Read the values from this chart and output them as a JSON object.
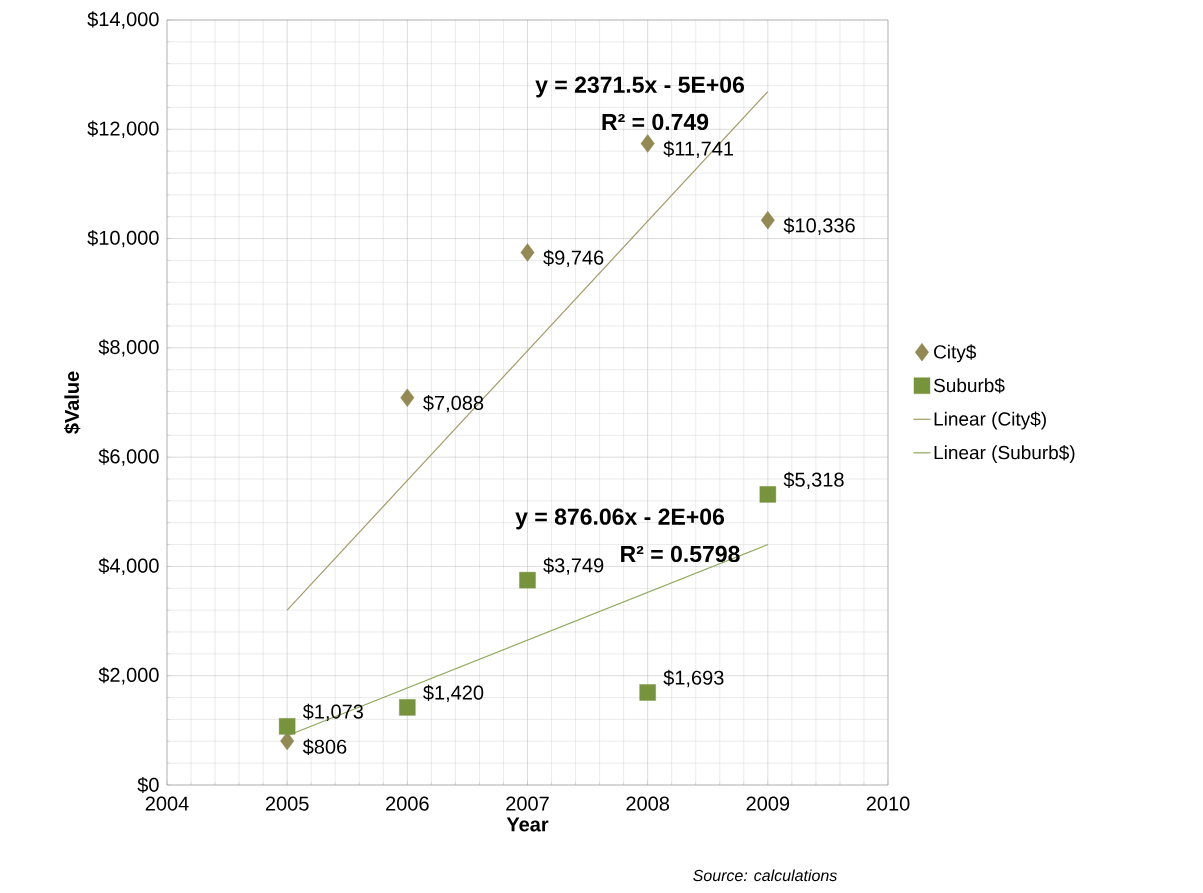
{
  "chart_data": {
    "type": "scatter",
    "xlabel": "Year",
    "ylabel": "$Value",
    "xlim": [
      2004,
      2010
    ],
    "xticks": [
      2004,
      2005,
      2006,
      2007,
      2008,
      2009,
      2010
    ],
    "ylim": [
      0,
      14000
    ],
    "yticks": [
      {
        "value": 0,
        "label": "$0"
      },
      {
        "value": 2000,
        "label": "$2,000"
      },
      {
        "value": 4000,
        "label": "$4,000"
      },
      {
        "value": 6000,
        "label": "$6,000"
      },
      {
        "value": 8000,
        "label": "$8,000"
      },
      {
        "value": 10000,
        "label": "$10,000"
      },
      {
        "value": 12000,
        "label": "$12,000"
      },
      {
        "value": 14000,
        "label": "$14,000"
      }
    ],
    "grid": true,
    "legend": "right",
    "series": [
      {
        "name": "City$",
        "marker": "diamond",
        "color": "#938953",
        "x": [
          2005,
          2006,
          2007,
          2008,
          2009
        ],
        "values": [
          806,
          7088,
          9746,
          11741,
          10336
        ],
        "value_labels": [
          "$806",
          "$7,088",
          "$9,746",
          "$11,741",
          "$10,336"
        ]
      },
      {
        "name": "Suburb$",
        "marker": "square",
        "color": "#77933c",
        "x": [
          2005,
          2006,
          2007,
          2008,
          2009
        ],
        "values": [
          1073,
          1420,
          3749,
          1693,
          5318
        ],
        "value_labels": [
          "$1,073",
          "$1,420",
          "$3,749",
          "$1,693",
          "$5,318"
        ]
      },
      {
        "name": "Linear (City$)",
        "type": "line",
        "marker": "none",
        "color": "#a39a68",
        "x": [
          2005,
          2009
        ],
        "values": [
          3200,
          12690
        ]
      },
      {
        "name": "Linear (Suburb$)",
        "type": "line",
        "marker": "none",
        "color": "#8fa85a",
        "x": [
          2005,
          2009
        ],
        "values": [
          900,
          4400
        ]
      }
    ],
    "annotations": [
      "y = 2371.5x - 5E+06",
      "R² = 0.749",
      "y = 876.06x - 2E+06",
      "R² = 0.5798",
      "Source: calculations"
    ]
  }
}
